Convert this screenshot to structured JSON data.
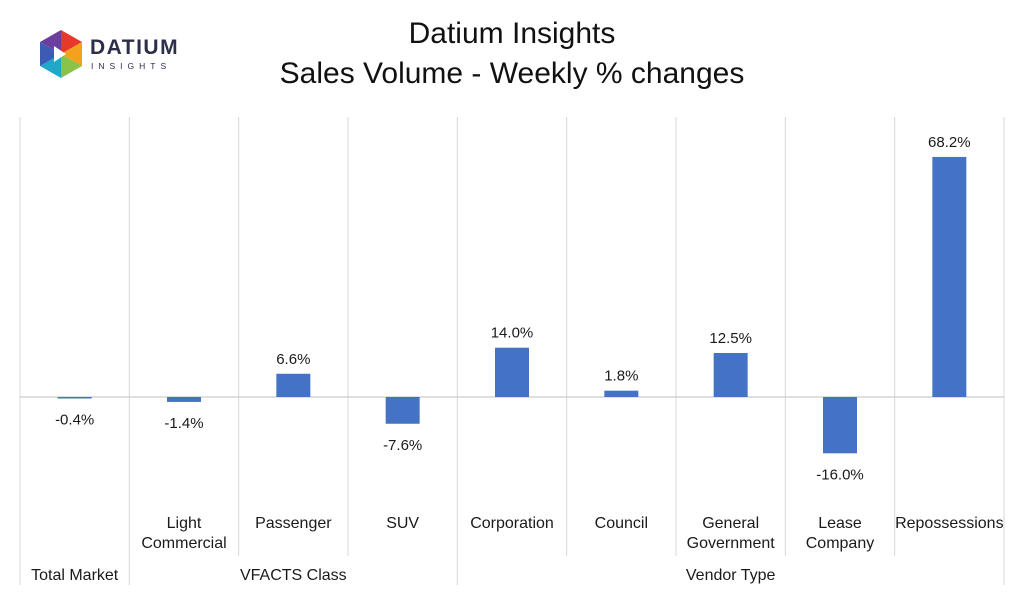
{
  "header": {
    "logo": {
      "wordmark": "DATIUM",
      "tagline": "INSIGHTS"
    },
    "title_line1": "Datium Insights",
    "title_line2": "Sales Volume - Weekly % changes"
  },
  "colors": {
    "bar": "#4472C4",
    "grid": "#d9d9d9",
    "axis": "#bfbfbf",
    "text": "#1a1a1a"
  },
  "chart_data": {
    "type": "bar",
    "title": "Sales Volume - Weekly % changes",
    "xlabel": "",
    "ylabel": "",
    "categories": [
      [
        "Total Market"
      ],
      [
        "Light",
        "Commercial"
      ],
      [
        "Passenger"
      ],
      [
        "SUV"
      ],
      [
        "Corporation"
      ],
      [
        "Council"
      ],
      [
        "General",
        "Government"
      ],
      [
        "Lease",
        "Company"
      ],
      [
        "Repossessions"
      ]
    ],
    "values": [
      -0.4,
      -1.4,
      6.6,
      -7.6,
      14.0,
      1.8,
      12.5,
      -16.0,
      68.2
    ],
    "value_labels": [
      "-0.4%",
      "-1.4%",
      "6.6%",
      "-7.6%",
      "14.0%",
      "1.8%",
      "12.5%",
      "-16.0%",
      "68.2%"
    ],
    "groups": [
      {
        "label": "Total Market",
        "start": 0,
        "end": 0
      },
      {
        "label": "VFACTS Class",
        "start": 1,
        "end": 3
      },
      {
        "label": "Vendor Type",
        "start": 4,
        "end": 8
      }
    ],
    "ylim": [
      -30,
      80
    ],
    "grid": "vertical category separators",
    "legend": "none"
  }
}
